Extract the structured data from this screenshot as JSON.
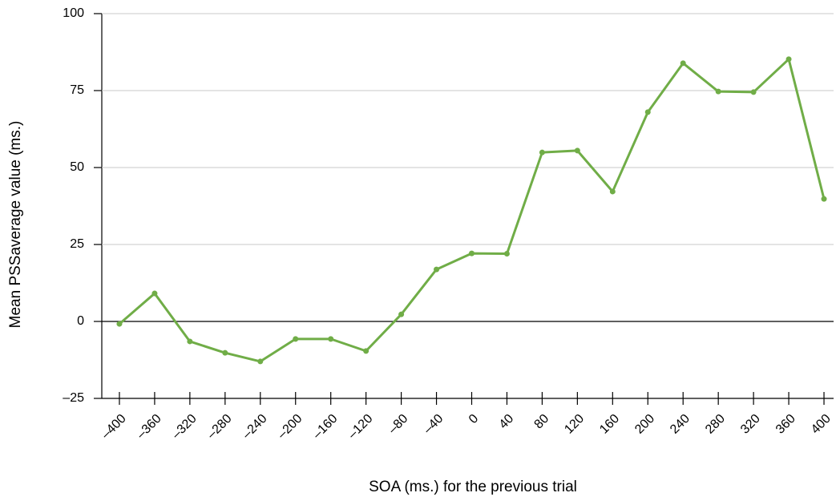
{
  "chart_data": {
    "type": "line",
    "x_label": "SOA (ms.) for the previous trial",
    "y_label": "Mean PSSaverage value (ms.)",
    "x": [
      -400,
      -360,
      -320,
      -280,
      -240,
      -200,
      -160,
      -120,
      -80,
      -40,
      0,
      40,
      80,
      120,
      160,
      200,
      240,
      280,
      320,
      360,
      400
    ],
    "series": [
      {
        "name": "Mean PSS",
        "color": "#70ad47",
        "values": [
          -0.8,
          9.1,
          -6.5,
          -10.2,
          -13.0,
          -5.7,
          -5.7,
          -9.6,
          2.3,
          16.9,
          22.1,
          22.0,
          54.9,
          55.5,
          42.2,
          68.0,
          83.9,
          74.7,
          74.5,
          85.2,
          39.8
        ]
      }
    ],
    "xlim": [
      -420,
      420
    ],
    "xticks": [
      {
        "value": -400,
        "label": "–400"
      },
      {
        "value": -360,
        "label": "–360"
      },
      {
        "value": -320,
        "label": "–320"
      },
      {
        "value": -280,
        "label": "–280"
      },
      {
        "value": -240,
        "label": "–240"
      },
      {
        "value": -200,
        "label": "–200"
      },
      {
        "value": -160,
        "label": "–160"
      },
      {
        "value": -120,
        "label": "–120"
      },
      {
        "value": -80,
        "label": "–80"
      },
      {
        "value": -40,
        "label": "–40"
      },
      0,
      40,
      80,
      120,
      160,
      200,
      240,
      280,
      320,
      360,
      400
    ],
    "ylim": [
      -25,
      100
    ],
    "yticks": [
      {
        "value": -25,
        "label": "–25"
      },
      0,
      25,
      50,
      75,
      100
    ],
    "grid": true
  }
}
